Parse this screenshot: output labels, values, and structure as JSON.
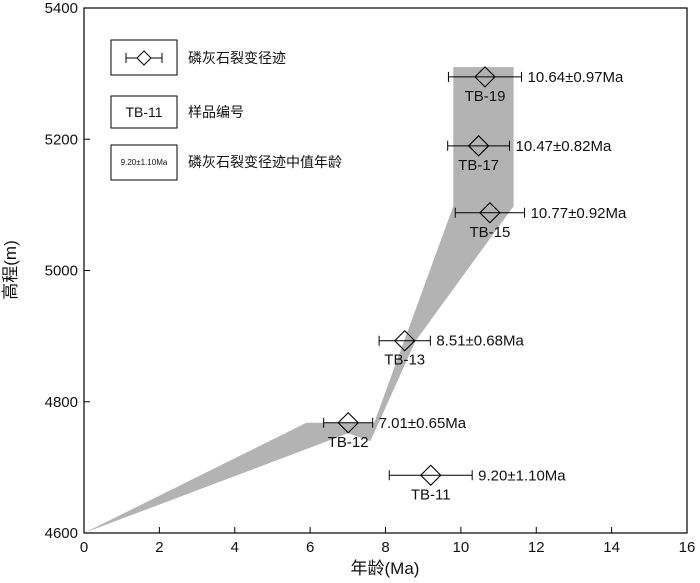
{
  "chart_data": {
    "type": "scatter",
    "xlabel": "年龄(Ma)",
    "ylabel": "高程(m)",
    "xlim": [
      0,
      16
    ],
    "ylim": [
      4600,
      5400
    ],
    "xticks": [
      0,
      2,
      4,
      6,
      8,
      10,
      12,
      14,
      16
    ],
    "yticks": [
      4600,
      4800,
      5000,
      5200,
      5400
    ],
    "grid": false,
    "legend_position": "top-left",
    "colors": {
      "band": "#b3b3b3",
      "line": "#000000"
    },
    "points": [
      {
        "sample": "TB-19",
        "age": 10.64,
        "err": 0.97,
        "elevation": 5295,
        "age_label": "10.64±0.97Ma"
      },
      {
        "sample": "TB-17",
        "age": 10.47,
        "err": 0.82,
        "elevation": 5190,
        "age_label": "10.47±0.82Ma"
      },
      {
        "sample": "TB-15",
        "age": 10.77,
        "err": 0.92,
        "elevation": 5088,
        "age_label": "10.77±0.92Ma"
      },
      {
        "sample": "TB-13",
        "age": 8.51,
        "err": 0.68,
        "elevation": 4893,
        "age_label": "8.51±0.68Ma"
      },
      {
        "sample": "TB-12",
        "age": 7.01,
        "err": 0.65,
        "elevation": 4768,
        "age_label": "7.01±0.65Ma"
      },
      {
        "sample": "TB-11",
        "age": 9.2,
        "err": 1.1,
        "elevation": 4688,
        "age_label": "9.20±1.10Ma"
      }
    ],
    "band_polygon": [
      [
        0,
        4600
      ],
      [
        5.9,
        4768
      ],
      [
        7.7,
        4768
      ],
      [
        9.8,
        5098
      ],
      [
        9.8,
        5310
      ],
      [
        11.4,
        5310
      ],
      [
        11.4,
        5098
      ],
      [
        8.8,
        4893
      ],
      [
        7.6,
        4740
      ],
      [
        7.01,
        4752
      ],
      [
        0,
        4600
      ]
    ],
    "legend": {
      "symbol_label": "磷灰石裂变径迹",
      "sample_box": "TB-11",
      "sample_label": "样品编号",
      "band_box": "9.20±1.10Ma",
      "band_label": "磷灰石裂变径迹中值年龄"
    }
  }
}
